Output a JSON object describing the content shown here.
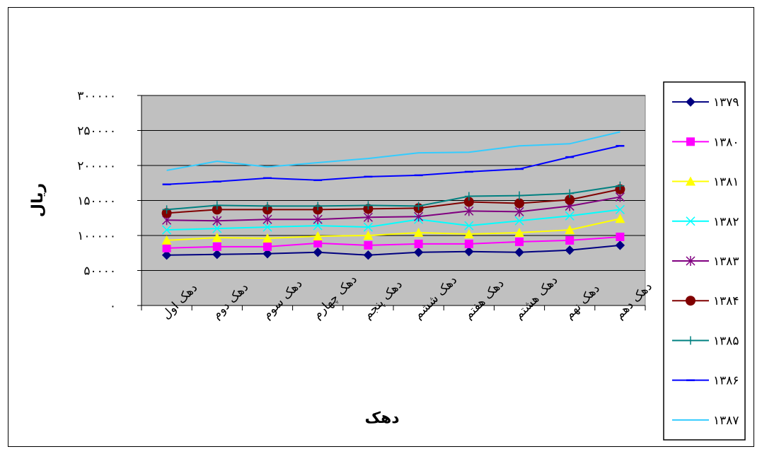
{
  "chart_data": {
    "type": "line",
    "title": "",
    "xlabel": "دهک",
    "ylabel": "ریال",
    "ylim": [
      0,
      300000
    ],
    "y_ticks": [
      {
        "value": 0,
        "label": "۰"
      },
      {
        "value": 50000,
        "label": "۵۰۰۰۰"
      },
      {
        "value": 100000,
        "label": "۱۰۰۰۰۰"
      },
      {
        "value": 150000,
        "label": "۱۵۰۰۰۰"
      },
      {
        "value": 200000,
        "label": "۲۰۰۰۰۰"
      },
      {
        "value": 250000,
        "label": "۲۵۰۰۰۰"
      },
      {
        "value": 300000,
        "label": "۳۰۰۰۰۰"
      }
    ],
    "grid": true,
    "legend_position": "right",
    "plot_background": "#c0c0c0",
    "categories": [
      "دهک اول",
      "دهک دوم",
      "دهک سوم",
      "دهک چهارم",
      "دهک پنجم",
      "دهک ششم",
      "دهک هفتم",
      "دهک هشتم",
      "دهک نهم",
      "دهک دهم"
    ],
    "series": [
      {
        "name": "۱۳۷۹",
        "color": "#000080",
        "marker": "diamond",
        "values": [
          72000,
          73000,
          74000,
          76000,
          72000,
          76000,
          77000,
          76000,
          79000,
          86000
        ]
      },
      {
        "name": "۱۳۸۰",
        "color": "#ff00ff",
        "marker": "square",
        "values": [
          82000,
          84000,
          84000,
          89000,
          86000,
          88000,
          88000,
          91000,
          93000,
          98000
        ]
      },
      {
        "name": "۱۳۸۱",
        "color": "#ffff00",
        "marker": "triangle",
        "values": [
          93000,
          97000,
          96000,
          99000,
          100000,
          104000,
          102000,
          104000,
          108000,
          124000
        ]
      },
      {
        "name": "۱۳۸۲",
        "color": "#00ffff",
        "marker": "x",
        "values": [
          108000,
          110000,
          112000,
          114000,
          112000,
          123000,
          114000,
          121000,
          128000,
          137000
        ]
      },
      {
        "name": "۱۳۸۳",
        "color": "#800080",
        "marker": "star",
        "values": [
          122000,
          121000,
          123000,
          123000,
          126000,
          127000,
          135000,
          134000,
          142000,
          155000
        ]
      },
      {
        "name": "۱۳۸۴",
        "color": "#800000",
        "marker": "circle",
        "values": [
          132000,
          137000,
          137000,
          137000,
          138000,
          139000,
          148000,
          146000,
          151000,
          166000
        ]
      },
      {
        "name": "۱۳۸۵",
        "color": "#008080",
        "marker": "plus",
        "values": [
          137000,
          143000,
          142000,
          142000,
          143000,
          142000,
          156000,
          157000,
          160000,
          171000
        ]
      },
      {
        "name": "۱۳۸۶",
        "color": "#0000ff",
        "marker": "dash",
        "values": [
          173000,
          177000,
          182000,
          179000,
          184000,
          186000,
          191000,
          195000,
          212000,
          228000
        ]
      },
      {
        "name": "۱۳۸۷",
        "color": "#33ccff",
        "marker": "none",
        "values": [
          193000,
          206000,
          198000,
          204000,
          210000,
          218000,
          219000,
          228000,
          231000,
          248000
        ]
      }
    ]
  }
}
